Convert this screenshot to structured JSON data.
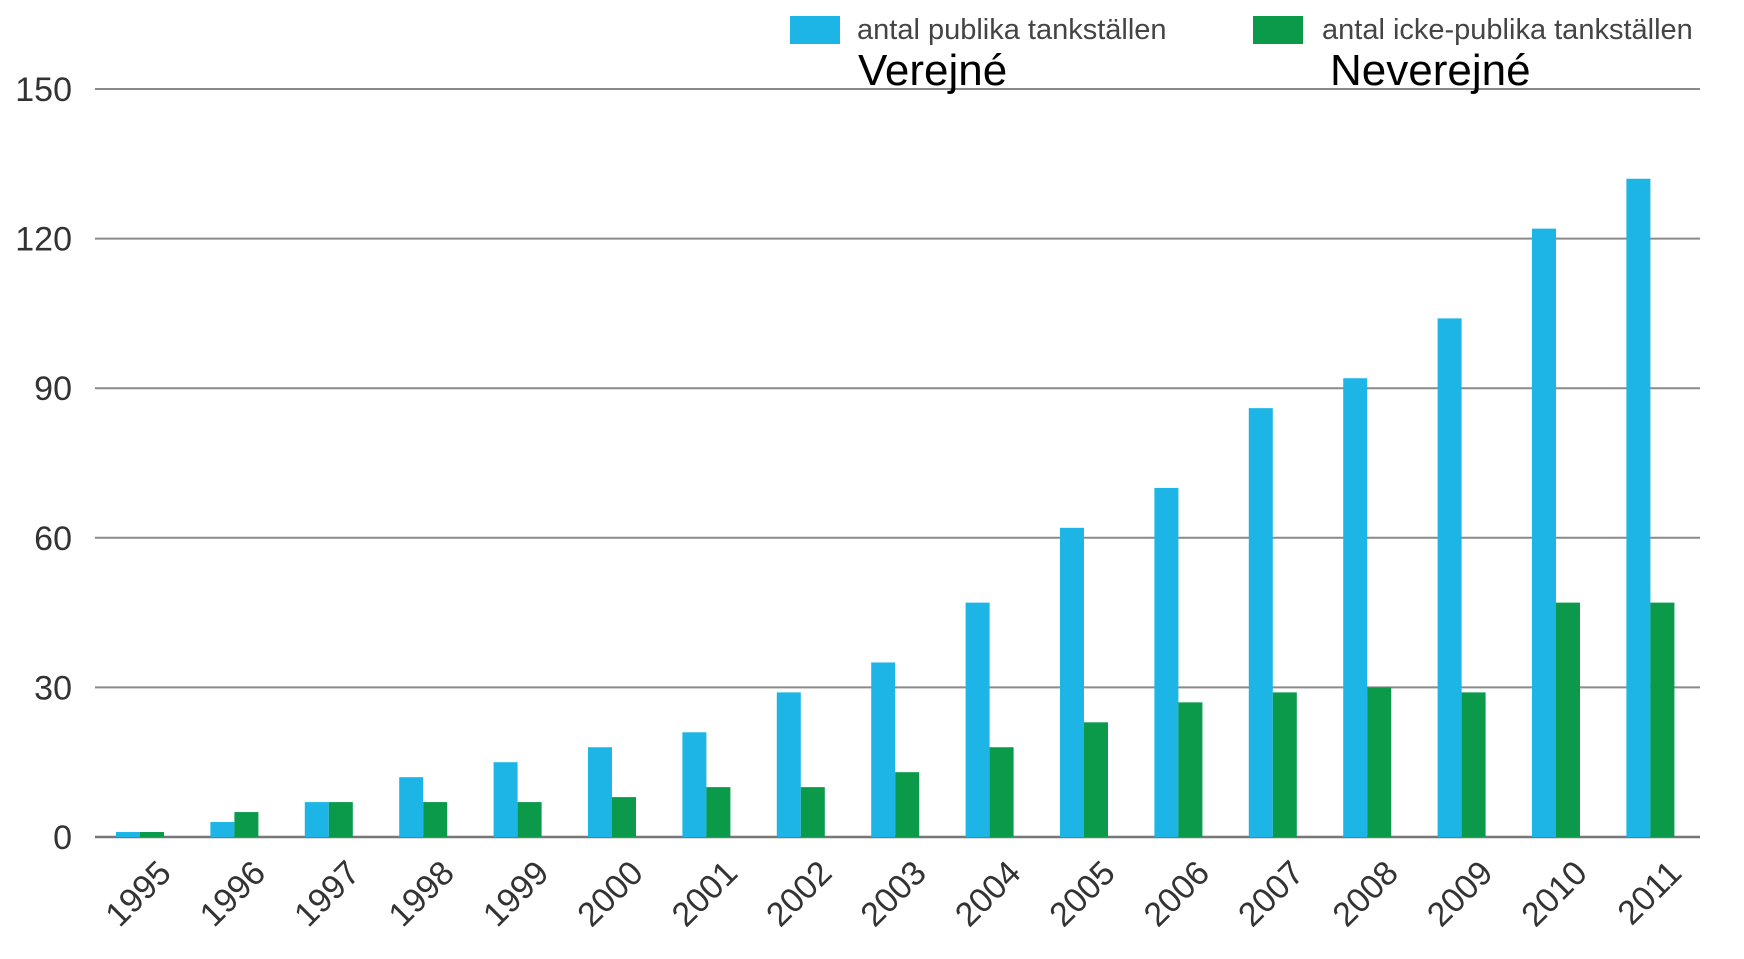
{
  "chart_data": {
    "type": "bar",
    "categories": [
      "1995",
      "1996",
      "1997",
      "1998",
      "1999",
      "2000",
      "2001",
      "2002",
      "2003",
      "2004",
      "2005",
      "2006",
      "2007",
      "2008",
      "2009",
      "2010",
      "2011"
    ],
    "series": [
      {
        "name": "antal publika tankställen",
        "color": "#1db5e6",
        "values": [
          1,
          3,
          7,
          12,
          15,
          18,
          21,
          29,
          35,
          47,
          62,
          70,
          86,
          92,
          104,
          122,
          132
        ]
      },
      {
        "name": "antal icke-publika tankställen",
        "color": "#0a9a4a",
        "values": [
          1,
          5,
          7,
          7,
          7,
          8,
          10,
          10,
          13,
          18,
          23,
          27,
          29,
          30,
          29,
          47,
          47
        ]
      }
    ],
    "overlay_labels": [
      "Verejné",
      "Neverejné"
    ],
    "ylim": [
      0,
      150
    ],
    "yticks": [
      "0",
      "30",
      "60",
      "90",
      "120",
      "150"
    ],
    "xlabel": "",
    "ylabel": "",
    "grid": true,
    "legend_position": "top-right"
  }
}
